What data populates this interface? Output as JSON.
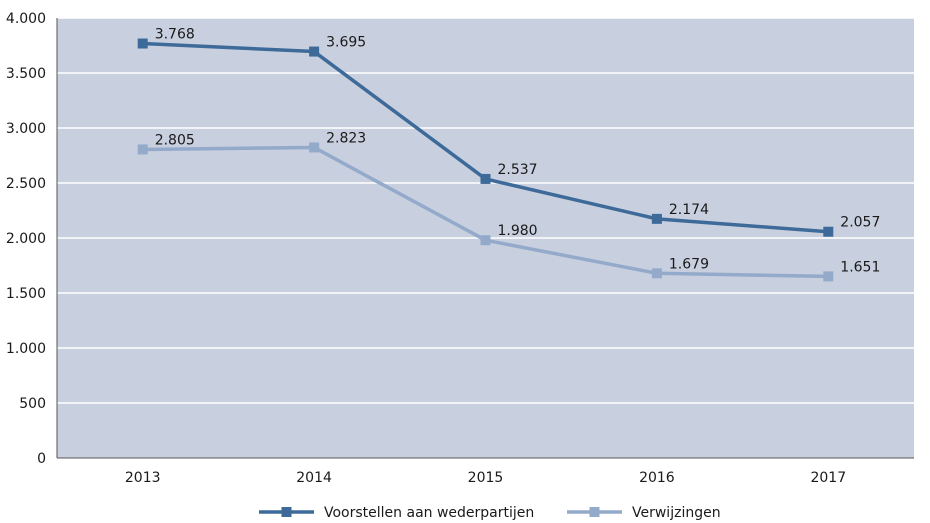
{
  "chart_data": {
    "type": "line",
    "categories": [
      "2013",
      "2014",
      "2015",
      "2016",
      "2017"
    ],
    "series": [
      {
        "name": "Voorstellen aan wederpartijen",
        "values": [
          3768,
          3695,
          2537,
          2174,
          2057
        ],
        "labels": [
          "3.768",
          "3.695",
          "2.537",
          "2.174",
          "2.057"
        ],
        "color": "#3d6a99"
      },
      {
        "name": "Verwijzingen",
        "values": [
          2805,
          2823,
          1980,
          1679,
          1651
        ],
        "labels": [
          "2.805",
          "2.823",
          "1.980",
          "1.679",
          "1.651"
        ],
        "color": "#94aacb"
      }
    ],
    "ylim": [
      0,
      4000
    ],
    "yticks": [
      0,
      500,
      1000,
      1500,
      2000,
      2500,
      3000,
      3500,
      4000
    ],
    "ytick_labels": [
      "0",
      "500",
      "1.000",
      "1.500",
      "2.000",
      "2.500",
      "3.000",
      "3.500",
      "4.000"
    ],
    "grid": true,
    "legend": "bottom-center",
    "plot_background": "#c8cfdf"
  }
}
